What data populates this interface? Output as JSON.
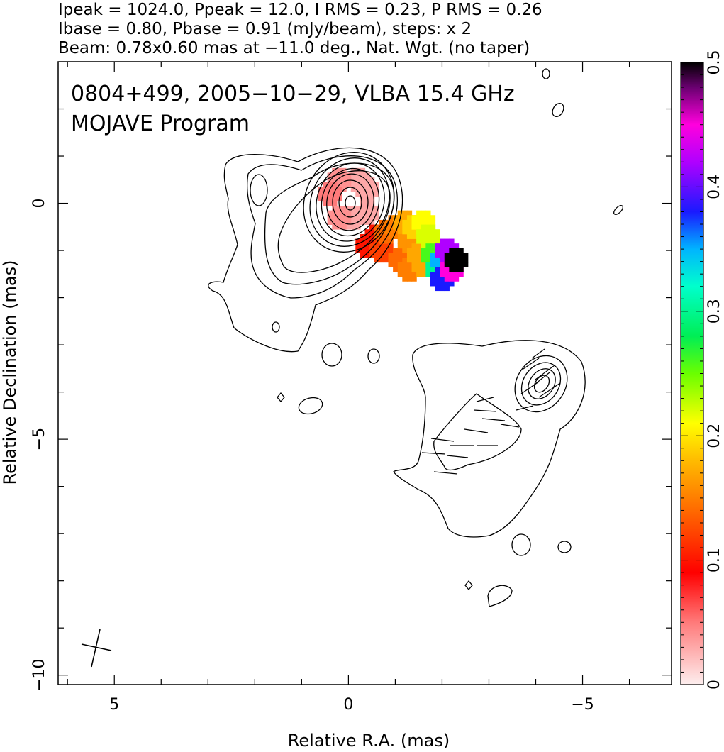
{
  "header": {
    "line1": "Ipeak = 1024.0, Ppeak = 12.0, I RMS = 0.23, P RMS = 0.26",
    "line2": "Ibase = 0.80, Pbase = 0.91 (mJy/beam), steps: x 2",
    "line3": "Beam: 0.78x0.60 mas at −11.0 deg., Nat. Wgt. (no taper)"
  },
  "chart_data": {
    "type": "heatmap",
    "title": "0804+499, 2005−10−29, VLBA 15.4 GHz",
    "subtitle": "MOJAVE Program",
    "xlabel": "Relative R.A. (mas)",
    "ylabel": "Relative Declination (mas)",
    "x_axis_reversed": true,
    "xlim": [
      6.2,
      -6.9
    ],
    "ylim": [
      -10.2,
      3.0
    ],
    "x_ticks": [
      5,
      0,
      -5
    ],
    "x_tick_labels": [
      "5",
      "0",
      "−5"
    ],
    "y_ticks": [
      0,
      -5,
      -10
    ],
    "y_tick_labels": [
      "0",
      "−5",
      "−10"
    ],
    "colorbar": {
      "range": [
        0,
        0.5
      ],
      "ticks": [
        0,
        0.1,
        0.2,
        0.3,
        0.4,
        0.5
      ],
      "tick_labels": [
        "0",
        "0.1",
        "0.2",
        "0.3",
        "0.4",
        "0.5"
      ]
    },
    "core": {
      "ra": 0.0,
      "dec": 0.0,
      "contour_levels": 11
    },
    "beam": {
      "major_mas": 0.78,
      "minor_mas": 0.6,
      "pa_deg": -11.0,
      "ra": 5.5,
      "dec": -9.4
    },
    "polarization_region": [
      {
        "ra": -0.4,
        "dec": -0.2,
        "value": 0.03
      },
      {
        "ra": -0.1,
        "dec": -0.3,
        "value": 0.03
      },
      {
        "ra": 0.2,
        "dec": -0.3,
        "value": 0.04
      },
      {
        "ra": -0.2,
        "dec": 0.5,
        "value": 0.03
      },
      {
        "ra": 0.2,
        "dec": 0.5,
        "value": 0.04
      },
      {
        "ra": -0.4,
        "dec": 0.3,
        "value": 0.03
      },
      {
        "ra": 0.4,
        "dec": 0.2,
        "value": 0.05
      },
      {
        "ra": -0.4,
        "dec": -0.9,
        "value": 0.1
      },
      {
        "ra": -0.6,
        "dec": -0.7,
        "value": 0.1
      },
      {
        "ra": -0.7,
        "dec": -1.0,
        "value": 0.12
      },
      {
        "ra": -0.8,
        "dec": -0.6,
        "value": 0.14
      },
      {
        "ra": -1.0,
        "dec": -0.5,
        "value": 0.15
      },
      {
        "ra": -1.1,
        "dec": -1.2,
        "value": 0.14
      },
      {
        "ra": -1.2,
        "dec": -0.4,
        "value": 0.17
      },
      {
        "ra": -1.3,
        "dec": -0.8,
        "value": 0.16
      },
      {
        "ra": -1.3,
        "dec": -1.4,
        "value": 0.15
      },
      {
        "ra": -1.4,
        "dec": -0.5,
        "value": 0.19
      },
      {
        "ra": -1.5,
        "dec": -1.1,
        "value": 0.17
      },
      {
        "ra": -1.6,
        "dec": -1.3,
        "value": 0.17
      },
      {
        "ra": -1.6,
        "dec": -0.4,
        "value": 0.21
      },
      {
        "ra": -1.7,
        "dec": -0.7,
        "value": 0.22
      },
      {
        "ra": -1.8,
        "dec": -1.1,
        "value": 0.26
      },
      {
        "ra": -1.9,
        "dec": -1.4,
        "value": 0.3
      },
      {
        "ra": -2.0,
        "dec": -1.2,
        "value": 0.35
      },
      {
        "ra": -2.0,
        "dec": -1.6,
        "value": 0.38
      },
      {
        "ra": -2.1,
        "dec": -1.0,
        "value": 0.42
      },
      {
        "ra": -2.2,
        "dec": -1.4,
        "value": 0.45
      },
      {
        "ra": -2.3,
        "dec": -1.2,
        "value": 0.5
      }
    ]
  }
}
